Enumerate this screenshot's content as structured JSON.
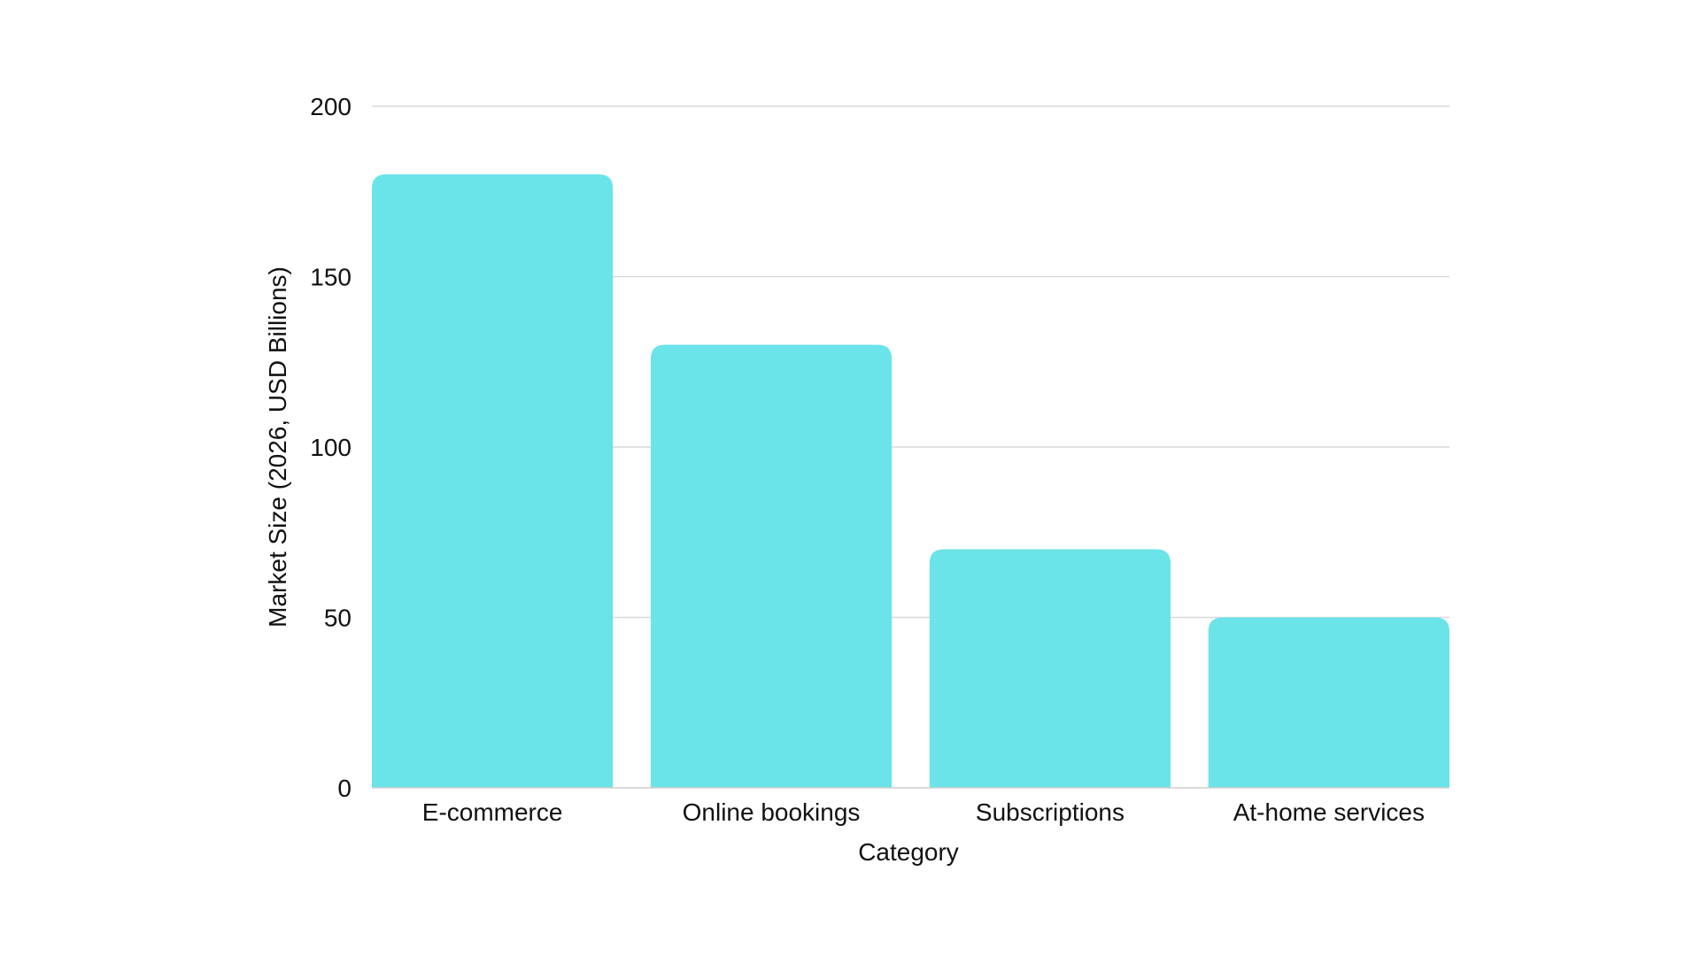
{
  "chart_data": {
    "type": "bar",
    "categories": [
      "E-commerce",
      "Online bookings",
      "Subscriptions",
      "At-home services"
    ],
    "values": [
      180,
      130,
      70,
      50
    ],
    "title": "",
    "xlabel": "Category",
    "ylabel": "Market Size (2026, USD Billions)",
    "ylim": [
      0,
      200
    ],
    "yticks": [
      0,
      50,
      100,
      150,
      200
    ],
    "grid": true,
    "legend": "none",
    "bar_color": "#6ae4e8"
  }
}
